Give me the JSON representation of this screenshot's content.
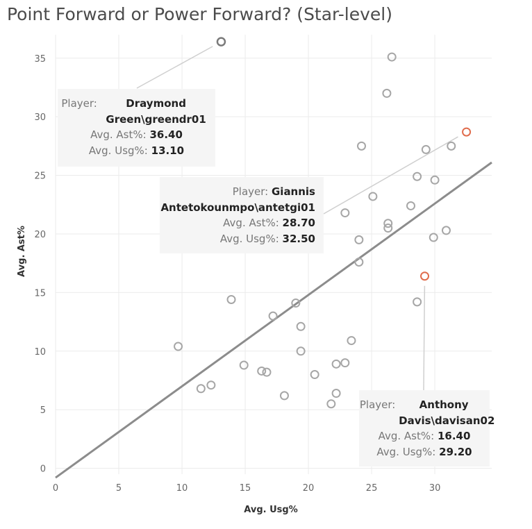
{
  "title": "Point Forward or Power Forward? (Star-level)",
  "chart_data": {
    "type": "scatter",
    "title": "Point Forward or Power Forward? (Star-level)",
    "xlabel": "Avg. Usg%",
    "ylabel": "Avg. Ast%",
    "xlim": [
      0,
      34.5
    ],
    "ylim": [
      -0.5,
      37
    ],
    "xticks": [
      0,
      5,
      10,
      15,
      20,
      25,
      30
    ],
    "yticks": [
      0,
      5,
      10,
      15,
      20,
      25,
      30,
      35
    ],
    "grid": true,
    "colors": {
      "point": "#a6a6a6",
      "highlight": "#e06c4c",
      "trend": "#8c8c8c",
      "tooltip_bg": "#f5f5f5"
    },
    "trend_line": {
      "x": [
        0,
        34.5
      ],
      "y": [
        -0.8,
        26.1
      ]
    },
    "points": [
      {
        "x": 13.1,
        "y": 36.4,
        "hover": true
      },
      {
        "x": 26.6,
        "y": 35.1
      },
      {
        "x": 26.2,
        "y": 32.0
      },
      {
        "x": 32.5,
        "y": 28.7,
        "highlight": true
      },
      {
        "x": 24.2,
        "y": 27.5
      },
      {
        "x": 29.3,
        "y": 27.2
      },
      {
        "x": 31.3,
        "y": 27.5
      },
      {
        "x": 28.6,
        "y": 24.9
      },
      {
        "x": 30.0,
        "y": 24.6
      },
      {
        "x": 25.1,
        "y": 23.2
      },
      {
        "x": 28.1,
        "y": 22.4
      },
      {
        "x": 22.9,
        "y": 21.8
      },
      {
        "x": 26.3,
        "y": 20.9
      },
      {
        "x": 26.3,
        "y": 20.5
      },
      {
        "x": 30.9,
        "y": 20.3
      },
      {
        "x": 29.9,
        "y": 19.7
      },
      {
        "x": 24.0,
        "y": 19.5
      },
      {
        "x": 24.0,
        "y": 17.6
      },
      {
        "x": 29.2,
        "y": 16.4,
        "highlight": true
      },
      {
        "x": 28.6,
        "y": 14.2
      },
      {
        "x": 13.9,
        "y": 14.4
      },
      {
        "x": 19.0,
        "y": 14.1
      },
      {
        "x": 17.2,
        "y": 13.0
      },
      {
        "x": 19.4,
        "y": 12.1
      },
      {
        "x": 23.4,
        "y": 10.9
      },
      {
        "x": 9.7,
        "y": 10.4
      },
      {
        "x": 19.4,
        "y": 10.0
      },
      {
        "x": 14.9,
        "y": 8.8
      },
      {
        "x": 16.3,
        "y": 8.3
      },
      {
        "x": 16.7,
        "y": 8.2
      },
      {
        "x": 20.5,
        "y": 8.0
      },
      {
        "x": 22.2,
        "y": 8.9
      },
      {
        "x": 22.9,
        "y": 9.0
      },
      {
        "x": 11.5,
        "y": 6.8
      },
      {
        "x": 12.3,
        "y": 7.1
      },
      {
        "x": 18.1,
        "y": 6.2
      },
      {
        "x": 22.2,
        "y": 6.4
      },
      {
        "x": 21.8,
        "y": 5.5
      }
    ],
    "annotations": [
      {
        "player_label": "Player:",
        "player_name": "Draymond Green\\greendr01",
        "ast_label": "Avg. Ast%:",
        "ast_value": "36.40",
        "usg_label": "Avg. Usg%:",
        "usg_value": "13.10",
        "point_x": 13.1,
        "point_y": 36.4
      },
      {
        "player_label": "Player:",
        "player_name": "Giannis Antetokounmpo\\antetgi01",
        "ast_label": "Avg. Ast%:",
        "ast_value": "28.70",
        "usg_label": "Avg. Usg%:",
        "usg_value": "32.50",
        "point_x": 32.5,
        "point_y": 28.7
      },
      {
        "player_label": "Player:",
        "player_name": "Anthony Davis\\davisan02",
        "ast_label": "Avg. Ast%:",
        "ast_value": "16.40",
        "usg_label": "Avg. Usg%:",
        "usg_value": "29.20",
        "point_x": 29.2,
        "point_y": 16.4
      }
    ]
  }
}
